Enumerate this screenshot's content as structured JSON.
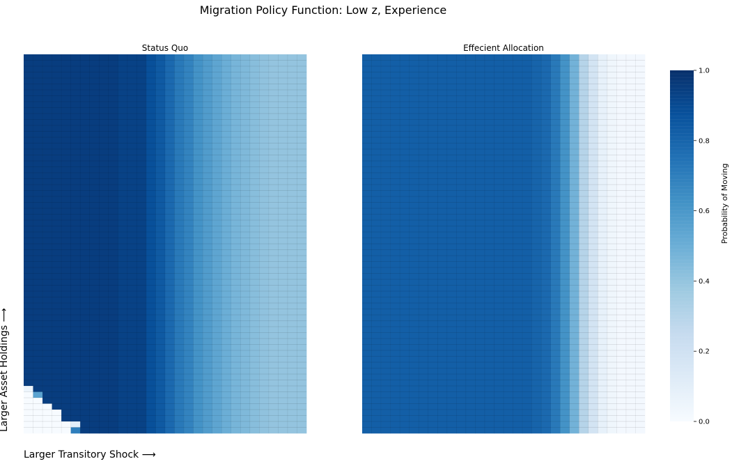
{
  "figure": {
    "title": "Migration Policy Function: Low z, Experience",
    "xlabel": "Larger Transitory Shock ⟶",
    "ylabel": "Larger Asset Holdings ⟶",
    "colorbar_label": "Probability of Moving",
    "colormap": [
      "#f7fbff",
      "#deebf7",
      "#c6dbef",
      "#9ecae1",
      "#6baed6",
      "#4292c6",
      "#2171b5",
      "#08519c",
      "#08306b"
    ]
  },
  "chart_data": [
    {
      "type": "heatmap",
      "title": "Status Quo",
      "n_rows": 64,
      "columns": 30,
      "column_values": [
        0.95,
        0.95,
        0.95,
        0.95,
        0.95,
        0.95,
        0.95,
        0.95,
        0.95,
        0.95,
        0.93,
        0.93,
        0.93,
        0.88,
        0.84,
        0.78,
        0.72,
        0.68,
        0.62,
        0.58,
        0.54,
        0.5,
        0.47,
        0.45,
        0.43,
        0.41,
        0.4,
        0.4,
        0.4,
        0.4
      ],
      "lower_left_exceptions": [
        {
          "row": 63,
          "zero_cols": 5,
          "edge_value": 0.7
        },
        {
          "row": 62,
          "zero_cols": 5,
          "edge_value": 0.1
        },
        {
          "row": 61,
          "zero_cols": 4,
          "edge_value": 0.95
        },
        {
          "row": 60,
          "zero_cols": 4,
          "edge_value": 0.95
        },
        {
          "row": 59,
          "zero_cols": 3,
          "edge_value": 0.95
        },
        {
          "row": 58,
          "zero_cols": 2,
          "edge_value": 0.95
        },
        {
          "row": 57,
          "zero_cols": 1,
          "edge_value": 0.55
        },
        {
          "row": 56,
          "zero_cols": 0,
          "edge_value": 0.05
        }
      ]
    },
    {
      "type": "heatmap",
      "title": "Effecient Allocation",
      "n_rows": 64,
      "columns": 30,
      "column_values": [
        0.82,
        0.82,
        0.82,
        0.82,
        0.82,
        0.82,
        0.82,
        0.82,
        0.82,
        0.82,
        0.82,
        0.82,
        0.82,
        0.82,
        0.82,
        0.82,
        0.82,
        0.82,
        0.8,
        0.78,
        0.72,
        0.62,
        0.48,
        0.3,
        0.18,
        0.08,
        0.04,
        0.02,
        0.02,
        0.02
      ]
    }
  ],
  "colorbar": {
    "min": 0.0,
    "max": 1.0,
    "ticks": [
      "0.0",
      "0.2",
      "0.4",
      "0.6",
      "0.8",
      "1.0"
    ]
  }
}
